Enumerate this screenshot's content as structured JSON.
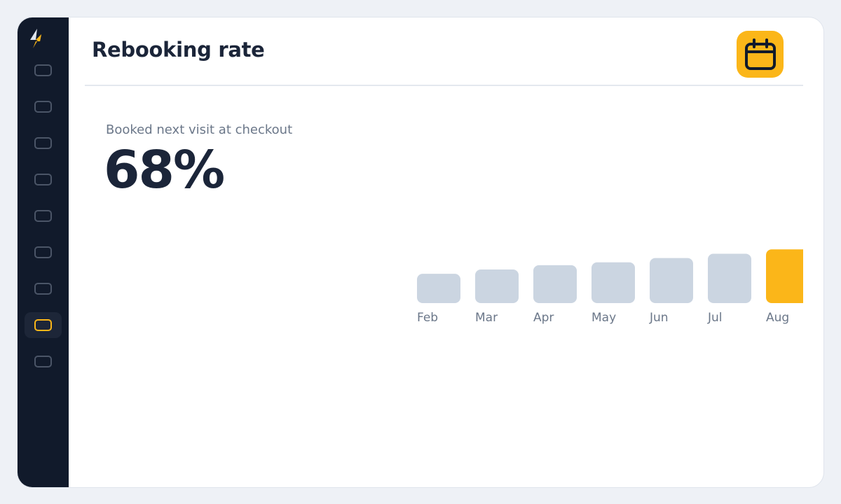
{
  "header": {
    "title": "Rebooking rate",
    "action_icon": "calendar-icon"
  },
  "sidebar": {
    "logo_icon": "bolt-icon",
    "items": [
      {
        "icon": "nav-icon",
        "active": false
      },
      {
        "icon": "nav-icon",
        "active": false
      },
      {
        "icon": "nav-icon",
        "active": false
      },
      {
        "icon": "nav-icon",
        "active": false
      },
      {
        "icon": "nav-icon",
        "active": false
      },
      {
        "icon": "nav-icon",
        "active": false
      },
      {
        "icon": "nav-icon",
        "active": false
      },
      {
        "icon": "nav-icon",
        "active": true
      },
      {
        "icon": "nav-icon",
        "active": false
      }
    ]
  },
  "metric": {
    "label": "Booked next visit at checkout",
    "value": "68%"
  },
  "colors": {
    "accent": "#fbb619",
    "bar_default": "#cbd5e1",
    "sidebar_bg": "#111a2b",
    "text_dark": "#1b2539",
    "text_muted": "#6b7789"
  },
  "chart_data": {
    "type": "bar",
    "categories": [
      "Feb",
      "Mar",
      "Apr",
      "May",
      "Jun",
      "Jul",
      "Aug"
    ],
    "values": [
      57,
      60,
      63,
      65,
      68,
      71,
      74
    ],
    "highlight_index": 6
  }
}
